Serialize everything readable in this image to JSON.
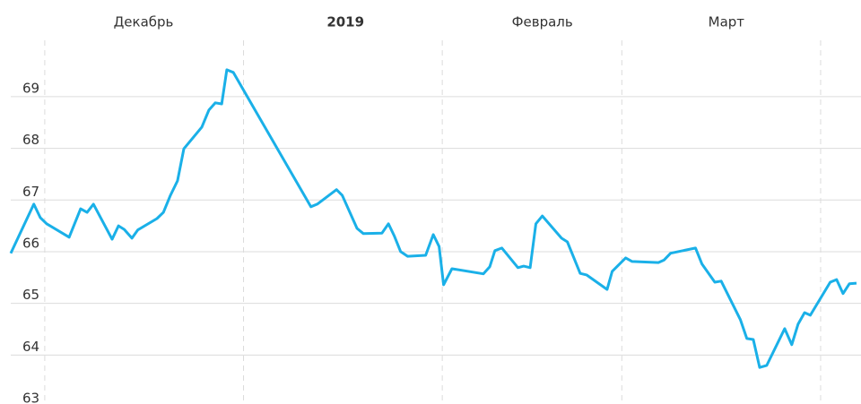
{
  "chart_data": {
    "type": "line",
    "color": "#1ab0e8",
    "grid": true,
    "xlim": [
      -5.3,
      127.3
    ],
    "xgrid": [
      0,
      31,
      62,
      90,
      121
    ],
    "xticks": [
      {
        "value": 15.4,
        "label": "Декабрь"
      },
      {
        "value": 46.9,
        "label": "2019",
        "bold": true
      },
      {
        "value": 77.6,
        "label": "Февраль"
      },
      {
        "value": 106.3,
        "label": "Март"
      }
    ],
    "ylim": [
      63,
      70
    ],
    "yticks": [
      63,
      64,
      65,
      66,
      67,
      68,
      69
    ],
    "x": [
      -5.3,
      -1.7,
      -0.7,
      0.3,
      3.8,
      5.6,
      6.6,
      7.6,
      10.5,
      11.5,
      12.4,
      13.6,
      14.5,
      17.5,
      18.5,
      19.6,
      20.7,
      21.7,
      24.5,
      25.6,
      26.6,
      27.6,
      28.4,
      29.4,
      41.5,
      42.5,
      45.5,
      46.4,
      48.7,
      49.7,
      52.6,
      53.6,
      54.5,
      55.5,
      56.6,
      59.4,
      60.6,
      61.5,
      62.2,
      63.5,
      68.4,
      69.4,
      70.2,
      71.3,
      73.8,
      74.7,
      75.7,
      76.6,
      77.6,
      80.6,
      81.5,
      83.5,
      84.5,
      87.7,
      88.5,
      90.6,
      91.6,
      95.7,
      96.6,
      97.6,
      101.5,
      102.5,
      104.5,
      105.5,
      108.5,
      109.5,
      110.5,
      111.5,
      112.6,
      115.4,
      116.5,
      117.5,
      118.5,
      119.4,
      122.5,
      123.5,
      124.5,
      125.5,
      126.6
    ],
    "values": [
      65.97,
      66.92,
      66.66,
      66.54,
      66.28,
      66.83,
      66.76,
      66.92,
      66.24,
      66.5,
      66.43,
      66.26,
      66.42,
      66.64,
      66.76,
      67.09,
      67.37,
      67.99,
      68.41,
      68.74,
      68.88,
      68.86,
      69.52,
      69.47,
      66.87,
      66.92,
      67.2,
      67.09,
      66.45,
      66.35,
      66.36,
      66.54,
      66.31,
      66.0,
      65.91,
      65.93,
      66.33,
      66.1,
      65.36,
      65.67,
      65.57,
      65.71,
      66.02,
      66.07,
      65.69,
      65.72,
      65.69,
      66.54,
      66.69,
      66.26,
      66.19,
      65.58,
      65.55,
      65.27,
      65.62,
      65.88,
      65.81,
      65.79,
      65.84,
      65.97,
      66.07,
      65.76,
      65.41,
      65.43,
      64.68,
      64.32,
      64.3,
      63.76,
      63.8,
      64.51,
      64.2,
      64.6,
      64.82,
      64.77,
      65.41,
      65.46,
      65.19,
      65.38,
      65.39
    ]
  }
}
